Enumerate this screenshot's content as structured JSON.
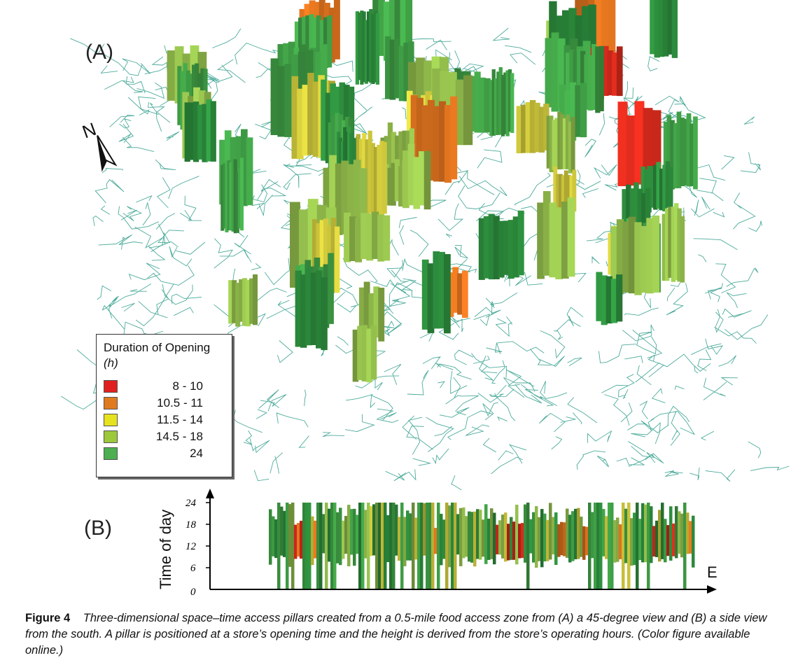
{
  "panel_a": {
    "label": "(A)"
  },
  "panel_b": {
    "label": "(B)"
  },
  "compass": {
    "letter": "N",
    "icon": "north-arrow-icon"
  },
  "legend": {
    "title": "Duration of Opening",
    "unit": "(h)",
    "entries": [
      {
        "range": "8 - 10",
        "color": "#e02020"
      },
      {
        "range": "10.5 - 11",
        "color": "#e07a1e"
      },
      {
        "range": "11.5 - 14",
        "color": "#e6e21e"
      },
      {
        "range": "14.5 - 18",
        "color": "#9cc83c"
      },
      {
        "range": "24",
        "color": "#4caf50"
      }
    ]
  },
  "colors": {
    "network": "#2e9c8a",
    "pillar_red": "#d42a1c",
    "pillar_orange": "#d9701e",
    "pillar_yellow": "#c9c23a",
    "pillar_light_green": "#8fb84a",
    "pillar_green": "#3f9d45",
    "pillar_dark_green": "#2c8b3c"
  },
  "side_view": {
    "y_axis_label": "Time of day",
    "x_axis_label": "E",
    "y_ticks": [
      "24",
      "18",
      "12",
      "6",
      "0"
    ]
  },
  "caption": {
    "heading": "Figure 4",
    "text": "Three-dimensional space–time access pillars created from a 0.5-mile food access zone from (A) a 45-degree view and (B) a side view from the south. A pillar is positioned at a store’s opening time and the height is derived from the store’s operating hours. (Color figure available online.)"
  }
}
